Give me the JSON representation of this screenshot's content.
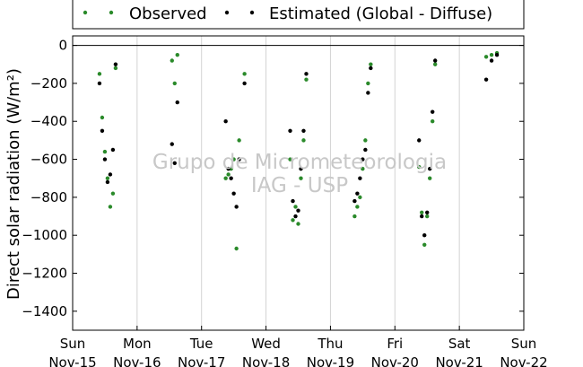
{
  "chart_data": {
    "type": "scatter",
    "title": "",
    "ylabel": "Direct solar radiation (W/m²)",
    "ylim": [
      -1500,
      50
    ],
    "yticks": [
      0,
      -200,
      -400,
      -600,
      -800,
      -1000,
      -1200,
      -1400
    ],
    "x_start": "2015-11-15",
    "x_end": "2015-11-22",
    "xticks": [
      {
        "date": "2015-11-15",
        "day": "Sun",
        "label": "Nov-15"
      },
      {
        "date": "2015-11-16",
        "day": "Mon",
        "label": "Nov-16"
      },
      {
        "date": "2015-11-17",
        "day": "Tue",
        "label": "Nov-17"
      },
      {
        "date": "2015-11-18",
        "day": "Wed",
        "label": "Nov-18"
      },
      {
        "date": "2015-11-19",
        "day": "Thu",
        "label": "Nov-19"
      },
      {
        "date": "2015-11-20",
        "day": "Fri",
        "label": "Nov-20"
      },
      {
        "date": "2015-11-21",
        "day": "Sat",
        "label": "Nov-21"
      },
      {
        "date": "2015-11-22",
        "day": "Sun",
        "label": "Nov-22"
      }
    ],
    "grid": "vertical",
    "legend_position": "top",
    "watermark": [
      "Grupo de Micrometeorologia",
      "IAG - USP"
    ],
    "series": [
      {
        "name": "Observed",
        "color": "#2a8a2a",
        "x": [
          "2015-11-15 10:00",
          "2015-11-15 11:00",
          "2015-11-15 12:00",
          "2015-11-15 13:00",
          "2015-11-15 14:00",
          "2015-11-15 15:00",
          "2015-11-15 16:00",
          "2015-11-16 13:00",
          "2015-11-16 14:00",
          "2015-11-16 15:00",
          "2015-11-17 09:00",
          "2015-11-17 10:00",
          "2015-11-17 11:00",
          "2015-11-17 12:00",
          "2015-11-17 13:00",
          "2015-11-17 14:00",
          "2015-11-17 16:00",
          "2015-11-18 09:00",
          "2015-11-18 10:00",
          "2015-11-18 11:00",
          "2015-11-18 12:00",
          "2015-11-18 13:00",
          "2015-11-18 14:00",
          "2015-11-18 15:00",
          "2015-11-19 09:00",
          "2015-11-19 10:00",
          "2015-11-19 11:00",
          "2015-11-19 12:00",
          "2015-11-19 13:00",
          "2015-11-19 14:00",
          "2015-11-19 15:00",
          "2015-11-20 09:00",
          "2015-11-20 10:00",
          "2015-11-20 11:00",
          "2015-11-20 12:00",
          "2015-11-20 13:00",
          "2015-11-20 14:00",
          "2015-11-20 15:00",
          "2015-11-21 10:00",
          "2015-11-21 12:00",
          "2015-11-21 14:00"
        ],
        "y": [
          -150,
          -380,
          -560,
          -700,
          -850,
          -780,
          -120,
          -80,
          -200,
          -50,
          -700,
          -680,
          -650,
          -600,
          -1070,
          -500,
          -150,
          -600,
          -920,
          -850,
          -940,
          -700,
          -500,
          -180,
          -900,
          -850,
          -800,
          -650,
          -500,
          -200,
          -100,
          -640,
          -880,
          -1050,
          -900,
          -700,
          -400,
          -100,
          -60,
          -50,
          -40
        ]
      },
      {
        "name": "Estimated (Global - Diffuse)",
        "color": "#000000",
        "x": [
          "2015-11-15 10:00",
          "2015-11-15 11:00",
          "2015-11-15 12:00",
          "2015-11-15 13:00",
          "2015-11-15 14:00",
          "2015-11-15 15:00",
          "2015-11-15 16:00",
          "2015-11-16 13:00",
          "2015-11-16 14:00",
          "2015-11-16 15:00",
          "2015-11-17 09:00",
          "2015-11-17 10:00",
          "2015-11-17 11:00",
          "2015-11-17 12:00",
          "2015-11-17 13:00",
          "2015-11-17 14:00",
          "2015-11-17 16:00",
          "2015-11-18 09:00",
          "2015-11-18 10:00",
          "2015-11-18 11:00",
          "2015-11-18 12:00",
          "2015-11-18 13:00",
          "2015-11-18 14:00",
          "2015-11-18 15:00",
          "2015-11-19 09:00",
          "2015-11-19 10:00",
          "2015-11-19 11:00",
          "2015-11-19 12:00",
          "2015-11-19 13:00",
          "2015-11-19 14:00",
          "2015-11-19 15:00",
          "2015-11-20 09:00",
          "2015-11-20 10:00",
          "2015-11-20 11:00",
          "2015-11-20 12:00",
          "2015-11-20 13:00",
          "2015-11-20 14:00",
          "2015-11-20 15:00",
          "2015-11-21 10:00",
          "2015-11-21 12:00",
          "2015-11-21 14:00"
        ],
        "y": [
          -200,
          -450,
          -600,
          -720,
          -680,
          -550,
          -100,
          -520,
          -620,
          -300,
          -400,
          -650,
          -700,
          -780,
          -850,
          -600,
          -200,
          -450,
          -820,
          -900,
          -870,
          -650,
          -450,
          -150,
          -820,
          -780,
          -700,
          -600,
          -550,
          -250,
          -120,
          -500,
          -900,
          -1000,
          -880,
          -650,
          -350,
          -80,
          -180,
          -80,
          -50
        ]
      }
    ]
  }
}
